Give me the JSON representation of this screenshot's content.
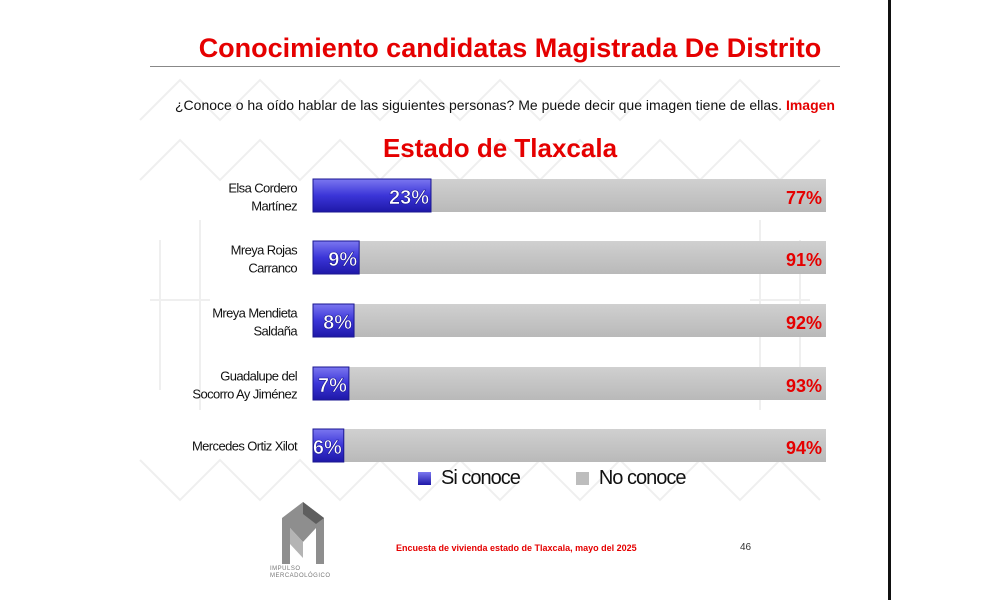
{
  "colors": {
    "accent_red": "#e50000",
    "si_conoce": "#3b35d8",
    "no_conoce": "#c4c4c4",
    "pattern": "#efefef"
  },
  "header": {
    "title": "Conocimiento candidatas Magistrada De Distrito",
    "question": "¿Conoce o ha oído hablar de las siguientes personas? Me puede decir que imagen tiene de ellas.",
    "question_highlight": "Imagen",
    "subtitle": "Estado de Tlaxcala"
  },
  "chart_data": {
    "type": "bar",
    "orientation": "horizontal",
    "stacked": true,
    "categories": [
      [
        "Elsa Cordero",
        "Martínez"
      ],
      [
        "Mreya Rojas",
        "Carranco"
      ],
      [
        "Mreya Mendieta",
        "Saldaña"
      ],
      [
        "Guadalupe del",
        "Socorro Ay Jiménez"
      ],
      [
        "Mercedes Ortiz Xilot"
      ]
    ],
    "series": [
      {
        "name": "Si conoce",
        "values": [
          23,
          9,
          8,
          7,
          6
        ],
        "labels": [
          "23%",
          "9%",
          "8%",
          "7%",
          "6%"
        ],
        "color": "#3b35d8"
      },
      {
        "name": "No conoce",
        "values": [
          77,
          91,
          92,
          93,
          94
        ],
        "labels": [
          "77%",
          "91%",
          "92%",
          "93%",
          "94%"
        ],
        "color": "#c4c4c4"
      }
    ],
    "xlim": [
      0,
      100
    ],
    "legend_position": "bottom",
    "grid": false
  },
  "legend": {
    "si_label": "Si conoce",
    "no_label": "No conoce"
  },
  "logo": {
    "icon": "impulso-mercadologico-logo-icon",
    "text": "IMPULSO MERCADOLÓGICO"
  },
  "footer": {
    "source": "Encuesta de vivienda estado de Tlaxcala, mayo   del 2025",
    "page_number": "46"
  }
}
